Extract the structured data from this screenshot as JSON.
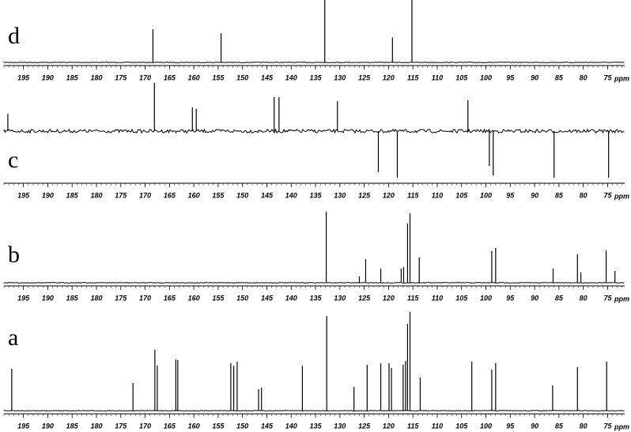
{
  "chart_data": [
    {
      "type": "stick",
      "label": "d",
      "color": "#000000",
      "xlabel": "ppm",
      "x": [
        168.4,
        154.4,
        133.1,
        119.2,
        115.2
      ],
      "values": [
        53,
        47,
        100,
        40,
        100
      ],
      "xlim": [
        199,
        71.5
      ],
      "ylim": [
        0,
        100
      ],
      "xticks": [
        195,
        190,
        185,
        180,
        175,
        170,
        165,
        160,
        155,
        150,
        145,
        140,
        135,
        130,
        125,
        120,
        115,
        110,
        105,
        100,
        95,
        90,
        85,
        80,
        75
      ]
    },
    {
      "type": "stick",
      "label": "c",
      "color": "#000000",
      "xlabel": "ppm",
      "noise": true,
      "x": [
        198.2,
        168.1,
        160.3,
        159.5,
        143.5,
        142.5,
        130.5,
        103.7,
        122.1,
        118.2,
        99.3,
        98.5,
        86.0,
        74.8
      ],
      "values": [
        22,
        61,
        30,
        28,
        43,
        43,
        38,
        39,
        -52,
        -59,
        -44,
        -56,
        -59,
        -59
      ],
      "xlim": [
        199,
        71.5
      ],
      "ylim": [
        -62,
        62
      ],
      "xticks": [
        195,
        190,
        185,
        180,
        175,
        170,
        165,
        160,
        155,
        150,
        145,
        140,
        135,
        130,
        125,
        120,
        115,
        110,
        105,
        100,
        95,
        90,
        85,
        80,
        75
      ]
    },
    {
      "type": "stick",
      "label": "b",
      "color": "#000000",
      "xlabel": "ppm",
      "x": [
        132.8,
        124.7,
        121.6,
        117.4,
        116.9,
        116.1,
        115.6,
        113.7,
        98.8,
        98.0,
        86.2,
        81.2,
        80.5,
        75.3,
        73.5,
        126.0
      ],
      "values": [
        90,
        30,
        18,
        18,
        20,
        75,
        88,
        32,
        40,
        44,
        18,
        36,
        13,
        41,
        15,
        8
      ],
      "xlim": [
        199,
        71.5
      ],
      "ylim": [
        0,
        100
      ],
      "xticks": [
        195,
        190,
        185,
        180,
        175,
        170,
        165,
        160,
        155,
        150,
        145,
        140,
        135,
        130,
        125,
        120,
        115,
        110,
        105,
        100,
        95,
        90,
        85,
        80,
        75
      ]
    },
    {
      "type": "stick",
      "label": "a",
      "color": "#000000",
      "xlabel": "ppm",
      "x": [
        197.4,
        172.5,
        168.0,
        167.5,
        163.7,
        163.3,
        152.4,
        151.8,
        151.1,
        146.7,
        146.1,
        137.7,
        132.7,
        127.1,
        124.4,
        121.6,
        119.9,
        119.4,
        117.0,
        116.5,
        116.1,
        115.6,
        113.5,
        102.9,
        98.8,
        98.0,
        86.3,
        81.2,
        75.2
      ],
      "values": [
        53,
        35,
        77,
        57,
        65,
        64,
        60,
        57,
        62,
        27,
        29,
        57,
        120,
        30,
        58,
        60,
        60,
        54,
        58,
        63,
        110,
        125,
        42,
        62,
        52,
        60,
        32,
        55,
        62
      ],
      "xlim": [
        199,
        71.5
      ],
      "ylim": [
        0,
        130
      ],
      "xticks": [
        195,
        190,
        185,
        180,
        175,
        170,
        165,
        160,
        155,
        150,
        145,
        140,
        135,
        130,
        125,
        120,
        115,
        110,
        105,
        100,
        95,
        90,
        85,
        80,
        75
      ]
    }
  ]
}
